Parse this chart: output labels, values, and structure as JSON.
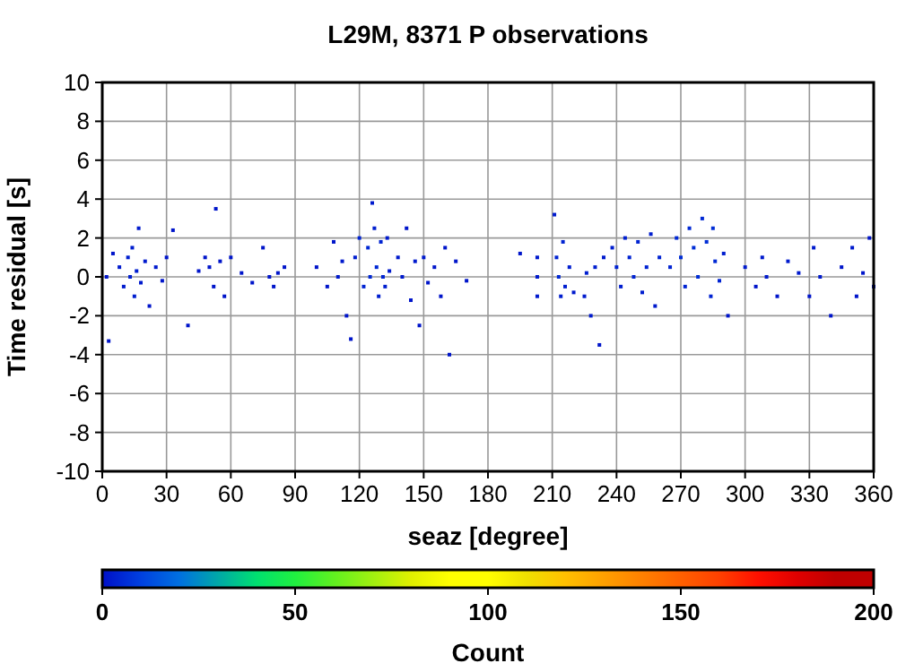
{
  "chart_data": {
    "type": "scatter",
    "title": "L29M, 8371 P observations",
    "xlabel": "seaz [degree]",
    "ylabel": "Time residual [s]",
    "clabel": "Count",
    "xlim": [
      0,
      360
    ],
    "xticks": [
      0,
      30,
      60,
      90,
      120,
      150,
      180,
      210,
      240,
      270,
      300,
      330,
      360
    ],
    "ylim": [
      -10,
      10
    ],
    "yticks": [
      -10,
      -8,
      -6,
      -4,
      -2,
      0,
      2,
      4,
      6,
      8,
      10
    ],
    "clim": [
      0,
      200
    ],
    "cticks": [
      0,
      50,
      100,
      150,
      200
    ],
    "grid": true,
    "marker": "square",
    "x": [
      2,
      3,
      5,
      8,
      10,
      12,
      13,
      14,
      15,
      16,
      17,
      18,
      20,
      22,
      25,
      28,
      30,
      33,
      40,
      45,
      48,
      50,
      52,
      53,
      55,
      57,
      60,
      65,
      70,
      75,
      78,
      80,
      82,
      85,
      100,
      105,
      108,
      110,
      112,
      114,
      116,
      118,
      120,
      122,
      124,
      125,
      126,
      127,
      128,
      129,
      130,
      131,
      132,
      133,
      134,
      138,
      140,
      142,
      144,
      146,
      148,
      150,
      152,
      155,
      158,
      160,
      162,
      165,
      170,
      195,
      203,
      203,
      203,
      211,
      212,
      213,
      214,
      215,
      216,
      218,
      220,
      225,
      226,
      228,
      230,
      232,
      234,
      238,
      240,
      242,
      244,
      246,
      248,
      250,
      252,
      254,
      256,
      258,
      260,
      265,
      268,
      270,
      272,
      274,
      276,
      278,
      280,
      282,
      284,
      285,
      286,
      288,
      290,
      292,
      300,
      305,
      308,
      310,
      315,
      320,
      325,
      330,
      332,
      335,
      340,
      345,
      350,
      352,
      355,
      358,
      360
    ],
    "values": [
      0,
      -3.3,
      1.2,
      0.5,
      -0.5,
      1,
      0,
      1.5,
      -1,
      0.3,
      2.5,
      -0.3,
      0.8,
      -1.5,
      0.5,
      -0.2,
      1,
      2.4,
      -2.5,
      0.3,
      1,
      0.5,
      -0.5,
      3.5,
      0.8,
      -1,
      1,
      0.2,
      -0.3,
      1.5,
      0,
      -0.5,
      0.2,
      0.5,
      0.5,
      -0.5,
      1.8,
      0,
      0.8,
      -2,
      -3.2,
      1,
      2,
      -0.5,
      1.5,
      0,
      3.8,
      2.5,
      0.5,
      -1,
      1.8,
      0,
      -0.5,
      2,
      0.3,
      1,
      0,
      2.5,
      -1.2,
      0.8,
      -2.5,
      1,
      -0.3,
      0.5,
      -1,
      1.5,
      -4,
      0.8,
      -0.2,
      1.2,
      -1,
      0,
      1,
      3.2,
      1,
      0,
      -1,
      1.8,
      -0.5,
      0.5,
      -0.8,
      -1,
      0.2,
      -2,
      0.5,
      -3.5,
      1,
      1.5,
      0.5,
      -0.5,
      2,
      1,
      0,
      1.8,
      -0.8,
      0.5,
      2.2,
      -1.5,
      1,
      0.5,
      2,
      1,
      -0.5,
      2.5,
      1.5,
      0,
      3,
      1.8,
      -1,
      2.5,
      0.8,
      -0.2,
      1.2,
      -2,
      0.5,
      -0.5,
      1,
      0,
      -1,
      0.8,
      0.2,
      -1,
      1.5,
      0,
      -2,
      0.5,
      1.5,
      -1,
      0.2,
      2,
      -0.5
    ],
    "cvalues": [
      1,
      1,
      1,
      2,
      2,
      3,
      3,
      3,
      3,
      3,
      2,
      2,
      2,
      1,
      2,
      1,
      1,
      1,
      1,
      1,
      1,
      1,
      1,
      1,
      1,
      1,
      1,
      1,
      1,
      1,
      1,
      1,
      1,
      1,
      1,
      1,
      1,
      2,
      2,
      1,
      1,
      3,
      4,
      4,
      5,
      5,
      2,
      3,
      5,
      3,
      4,
      4,
      3,
      2,
      2,
      2,
      2,
      1,
      1,
      2,
      1,
      2,
      1,
      1,
      1,
      1,
      1,
      1,
      1,
      1,
      2,
      2,
      2,
      2,
      4,
      5,
      3,
      4,
      3,
      3,
      2,
      2,
      3,
      2,
      3,
      1,
      2,
      3,
      4,
      3,
      3,
      4,
      4,
      4,
      3,
      4,
      3,
      2,
      4,
      4,
      5,
      6,
      4,
      5,
      6,
      6,
      5,
      6,
      4,
      6,
      5,
      4,
      3,
      1,
      2,
      1,
      2,
      2,
      1,
      2,
      2,
      1,
      2,
      2,
      1,
      1,
      2,
      1,
      1,
      1,
      1
    ]
  }
}
